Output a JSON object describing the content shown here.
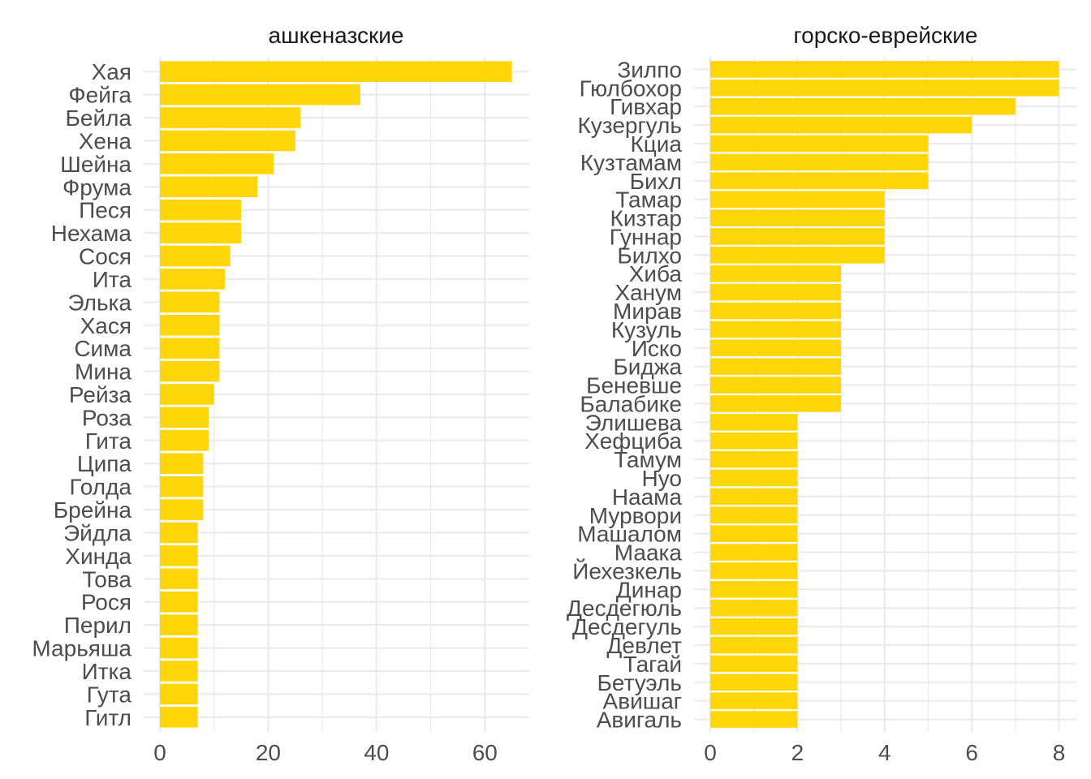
{
  "colors": {
    "bar": "#FFD60A",
    "grid": "#EBEBEB",
    "text": "#4D4D4D",
    "title": "#1A1A1A"
  },
  "chart_data": [
    {
      "type": "bar",
      "orientation": "horizontal",
      "title": "ашкеназские",
      "xlabel": "",
      "ylabel": "",
      "xlim": [
        0,
        68
      ],
      "xticks": [
        0,
        20,
        40,
        60
      ],
      "grid": true,
      "categories": [
        "Хая",
        "Фейга",
        "Бейла",
        "Хена",
        "Шейна",
        "Фрума",
        "Песя",
        "Нехама",
        "Сося",
        "Ита",
        "Элька",
        "Хася",
        "Сима",
        "Мина",
        "Рейза",
        "Роза",
        "Гита",
        "Ципа",
        "Голда",
        "Брейна",
        "Эйдла",
        "Хинда",
        "Това",
        "Рося",
        "Перил",
        "Марьяша",
        "Итка",
        "Гута",
        "Гитл"
      ],
      "values": [
        65,
        37,
        26,
        25,
        21,
        18,
        15,
        15,
        13,
        12,
        11,
        11,
        11,
        11,
        10,
        9,
        9,
        8,
        8,
        8,
        7,
        7,
        7,
        7,
        7,
        7,
        7,
        7,
        7
      ]
    },
    {
      "type": "bar",
      "orientation": "horizontal",
      "title": "горско-еврейские",
      "xlabel": "",
      "ylabel": "",
      "xlim": [
        0,
        8.4
      ],
      "xticks": [
        0,
        2,
        4,
        6,
        8
      ],
      "grid": true,
      "categories": [
        "Зилпо",
        "Гюлбохор",
        "Гивхар",
        "Кузергуль",
        "Кциа",
        "Кузтамам",
        "Бихл",
        "Тамар",
        "Кизтар",
        "Гуннар",
        "Билхо",
        "Хиба",
        "Ханум",
        "Мирав",
        "Кузуль",
        "Иско",
        "Биджа",
        "Беневше",
        "Балабике",
        "Элишева",
        "Хефциба",
        "Тамум",
        "Нуо",
        "Наама",
        "Мурвори",
        "Машалом",
        "Маака",
        "Йехезкель",
        "Динар",
        "Десдегюль",
        "Десдегуль",
        "Девлет",
        "Тагай",
        "Бетуэль",
        "Авишаг",
        "Авигаль"
      ],
      "values": [
        8,
        8,
        7,
        6,
        5,
        5,
        5,
        4,
        4,
        4,
        4,
        3,
        3,
        3,
        3,
        3,
        3,
        3,
        3,
        2,
        2,
        2,
        2,
        2,
        2,
        2,
        2,
        2,
        2,
        2,
        2,
        2,
        2,
        2,
        2,
        2
      ]
    }
  ]
}
